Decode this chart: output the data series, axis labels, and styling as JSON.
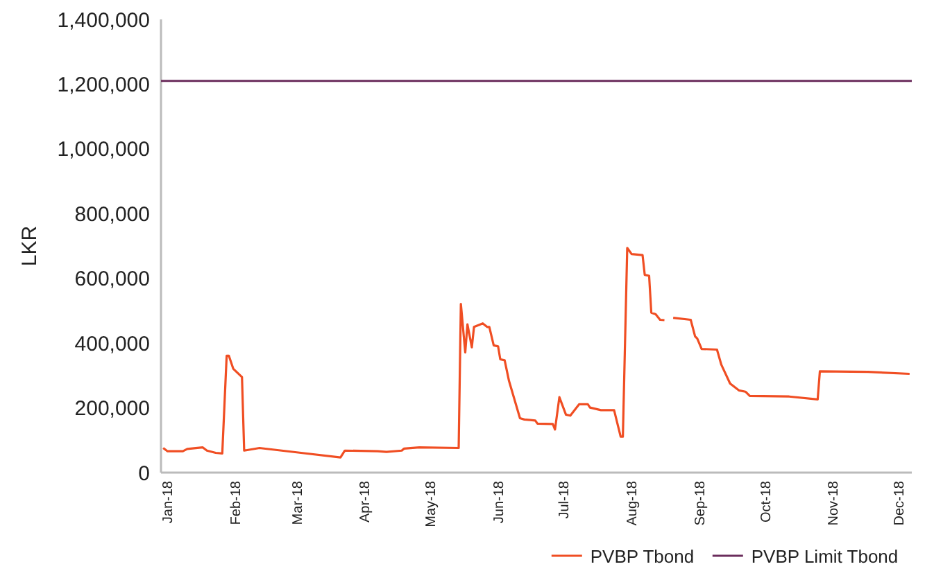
{
  "chart_data": {
    "type": "line",
    "ylabel": "LKR",
    "legend": "bottom right",
    "grid": false,
    "xlim": [
      "2017-12-29",
      "2018-12-07"
    ],
    "xticks": [
      {
        "value": "2018-01-01",
        "label": "Jan-18"
      },
      {
        "value": "2018-02-01",
        "label": "Feb-18"
      },
      {
        "value": "2018-03-01",
        "label": "Mar-18"
      },
      {
        "value": "2018-04-01",
        "label": "Apr-18"
      },
      {
        "value": "2018-05-01",
        "label": "May-18"
      },
      {
        "value": "2018-06-01",
        "label": "Jun-18"
      },
      {
        "value": "2018-07-01",
        "label": "Jul-18"
      },
      {
        "value": "2018-08-01",
        "label": "Aug-18"
      },
      {
        "value": "2018-09-01",
        "label": "Sep-18"
      },
      {
        "value": "2018-10-01",
        "label": "Oct-18"
      },
      {
        "value": "2018-11-01",
        "label": "Nov-18"
      },
      {
        "value": "2018-12-01",
        "label": "Dec-18"
      }
    ],
    "ylim": [
      0,
      1400000
    ],
    "yticks": [
      {
        "value": 0,
        "label": "0"
      },
      {
        "value": 200000,
        "label": "200,000"
      },
      {
        "value": 400000,
        "label": "400,000"
      },
      {
        "value": 600000,
        "label": "600,000"
      },
      {
        "value": 800000,
        "label": "800,000"
      },
      {
        "value": 1000000,
        "label": "1,000,000"
      },
      {
        "value": 1200000,
        "label": "1,200,000"
      },
      {
        "value": 1400000,
        "label": "1,400,000"
      }
    ],
    "series": [
      {
        "name": "PVBP Tbond",
        "color": "#f04e23",
        "x": [
          "2017-12-30",
          "2018-01-01",
          "2018-01-08",
          "2018-01-10",
          "2018-01-17",
          "2018-01-19",
          "2018-01-23",
          "2018-01-26",
          "2018-01-28",
          "2018-01-29",
          "2018-01-31",
          "2018-02-04",
          "2018-02-05",
          "2018-02-12",
          "2018-03-03",
          "2018-03-21",
          "2018-03-23",
          "2018-04-07",
          "2018-04-11",
          "2018-04-18",
          "2018-04-19",
          "2018-04-26",
          "2018-05-14",
          "2018-05-15",
          "2018-05-17",
          "2018-05-18",
          "2018-05-20",
          "2018-05-21",
          "2018-05-25",
          "2018-05-27",
          "2018-05-28",
          "2018-05-30",
          "2018-06-01",
          "2018-06-02",
          "2018-06-04",
          "2018-06-06",
          "2018-06-11",
          "2018-06-13",
          "2018-06-18",
          "2018-06-19",
          "2018-06-26",
          "2018-06-27",
          "2018-06-29",
          "2018-07-02",
          "2018-07-04",
          "2018-07-08",
          "2018-07-12",
          "2018-07-13",
          "2018-07-18",
          "2018-07-24",
          "2018-07-27",
          "2018-07-28",
          "2018-07-30",
          "2018-08-01",
          "2018-08-06",
          "2018-08-07",
          "2018-08-09",
          "2018-08-10",
          "2018-08-12",
          "2018-08-14",
          "2018-08-16",
          "2018-08-18",
          "2018-08-20",
          "2018-08-28",
          "2018-08-30",
          "2018-08-31",
          "2018-09-02",
          "2018-09-09",
          "2018-09-11",
          "2018-09-15",
          "2018-09-19",
          "2018-09-22",
          "2018-09-24",
          "2018-10-12",
          "2018-10-25",
          "2018-10-26",
          "2018-11-17",
          "2018-12-06"
        ],
        "values": [
          76000,
          66000,
          66000,
          73000,
          78000,
          68000,
          61000,
          59000,
          361000,
          361000,
          321000,
          295000,
          68000,
          76000,
          61000,
          47000,
          68000,
          66000,
          64000,
          68000,
          74000,
          78000,
          76000,
          521000,
          371000,
          458000,
          387000,
          450000,
          461000,
          450000,
          450000,
          393000,
          390000,
          350000,
          347000,
          283000,
          168000,
          164000,
          161000,
          151000,
          150000,
          133000,
          233000,
          179000,
          176000,
          211000,
          211000,
          201000,
          193000,
          193000,
          111000,
          111000,
          694000,
          675000,
          672000,
          611000,
          608000,
          494000,
          489000,
          472000,
          471000,
          null,
          478000,
          472000,
          421000,
          414000,
          382000,
          380000,
          333000,
          275000,
          254000,
          250000,
          237000,
          235000,
          226000,
          313000,
          311000,
          305000
        ]
      },
      {
        "name": "PVBP Limit Tbond",
        "color": "#6b2d5c",
        "x": [
          "2017-12-29",
          "2018-12-07"
        ],
        "values": [
          1210000,
          1210000
        ]
      }
    ]
  }
}
